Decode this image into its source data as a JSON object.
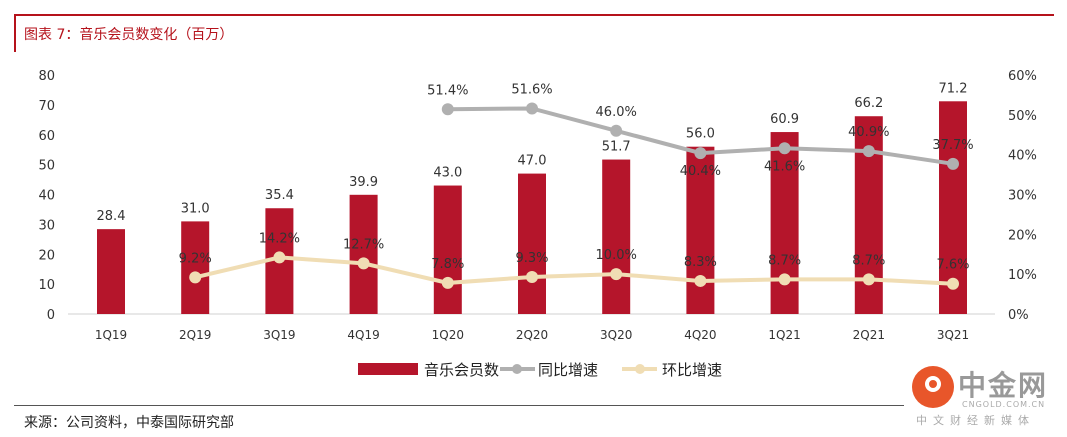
{
  "header": {
    "title": "图表 7：音乐会员数变化（百万）"
  },
  "footer": {
    "source": "来源：公司资料，中泰国际研究部"
  },
  "watermark": {
    "name": "中金网",
    "url": "CNGOLD.COM.CN",
    "tagline": "中文财经新媒体"
  },
  "colors": {
    "bar": "#b5152b",
    "yoy": "#b0b0b0",
    "qoq": "#f0ddb4"
  },
  "chart_data": {
    "type": "bar",
    "title": "音乐会员数变化（百万）",
    "categories": [
      "1Q19",
      "2Q19",
      "3Q19",
      "4Q19",
      "1Q20",
      "2Q20",
      "3Q20",
      "4Q20",
      "1Q21",
      "2Q21",
      "3Q21"
    ],
    "series": [
      {
        "name": "音乐会员数",
        "type": "bar",
        "axis": "left",
        "values": [
          28.4,
          31.0,
          35.4,
          39.9,
          43.0,
          47.0,
          51.7,
          56.0,
          60.9,
          66.2,
          71.2
        ],
        "labels": [
          "28.4",
          "31.0",
          "35.4",
          "39.9",
          "43.0",
          "47.0",
          "51.7",
          "56.0",
          "60.9",
          "66.2",
          "71.2"
        ]
      },
      {
        "name": "同比增速",
        "type": "line",
        "axis": "right",
        "values": [
          null,
          null,
          null,
          null,
          51.4,
          51.6,
          46.0,
          40.4,
          41.6,
          40.9,
          37.7
        ],
        "labels": [
          "",
          "",
          "",
          "",
          "51.4%",
          "51.6%",
          "46.0%",
          "40.4%",
          "41.6%",
          "40.9%",
          "37.7%"
        ]
      },
      {
        "name": "环比增速",
        "type": "line",
        "axis": "right",
        "values": [
          null,
          9.2,
          14.2,
          12.7,
          7.8,
          9.3,
          10.0,
          8.3,
          8.7,
          8.7,
          7.6
        ],
        "labels": [
          "",
          "9.2%",
          "14.2%",
          "12.7%",
          "7.8%",
          "9.3%",
          "10.0%",
          "8.3%",
          "8.7%",
          "8.7%",
          "7.6%"
        ]
      }
    ],
    "yleft": {
      "ylim": [
        0,
        80
      ],
      "ticks": [
        "0",
        "10",
        "20",
        "30",
        "40",
        "50",
        "60",
        "70",
        "80"
      ]
    },
    "yright": {
      "ylim": [
        0,
        60
      ],
      "ticks": [
        "0%",
        "10%",
        "20%",
        "30%",
        "40%",
        "50%",
        "60%"
      ]
    },
    "grid": false,
    "legend": "bottom"
  }
}
